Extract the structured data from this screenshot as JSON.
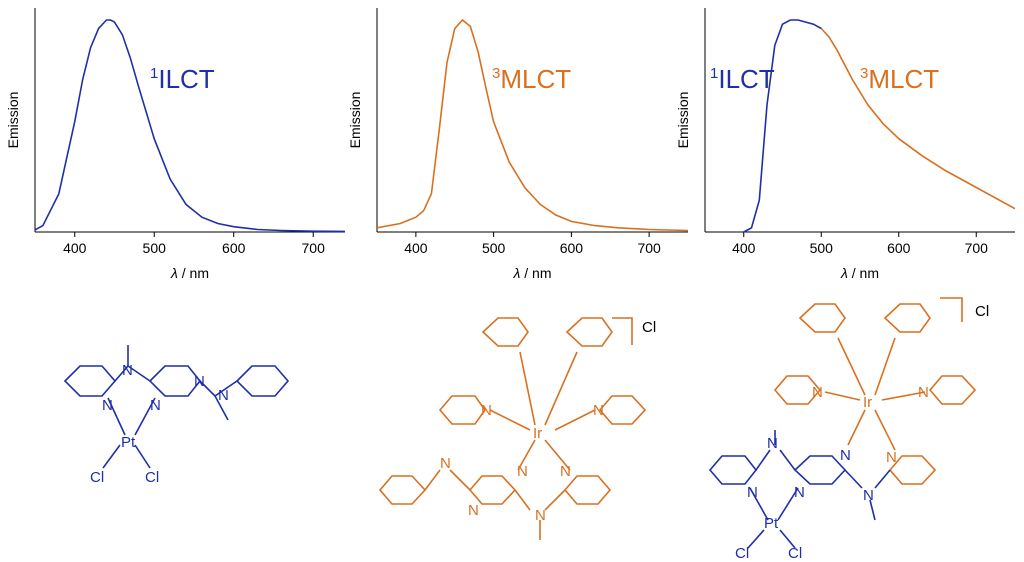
{
  "colors": {
    "blue": "#1f2fa8",
    "orange": "#d9701f",
    "axis": "#000000"
  },
  "chart_data": [
    {
      "type": "line",
      "xlabel_symbol": "λ",
      "xlabel_unit": "/ nm",
      "ylabel": "Emission",
      "xlim": [
        350,
        740
      ],
      "ylim": [
        0,
        1.0
      ],
      "x_ticks": [
        400,
        500,
        600,
        700
      ],
      "annotation": {
        "sup": "1",
        "text": "ILCT",
        "color": "#1f2fa8"
      },
      "series": [
        {
          "color": "#1f2fa8",
          "x": [
            350,
            360,
            380,
            400,
            410,
            420,
            430,
            440,
            445,
            450,
            460,
            470,
            480,
            500,
            520,
            540,
            560,
            580,
            600,
            630,
            660,
            700,
            740
          ],
          "y": [
            0.01,
            0.03,
            0.18,
            0.52,
            0.72,
            0.87,
            0.96,
            1.0,
            1.0,
            0.99,
            0.93,
            0.82,
            0.69,
            0.44,
            0.25,
            0.13,
            0.07,
            0.04,
            0.025,
            0.012,
            0.007,
            0.004,
            0.003
          ]
        }
      ]
    },
    {
      "type": "line",
      "xlabel_symbol": "λ",
      "xlabel_unit": "/ nm",
      "ylabel": "Emission",
      "xlim": [
        350,
        750
      ],
      "ylim": [
        0,
        1.0
      ],
      "x_ticks": [
        400,
        500,
        600,
        700
      ],
      "annotation": {
        "sup": "3",
        "text": "MLCT",
        "color": "#d9701f"
      },
      "series": [
        {
          "color": "#d9701f",
          "x": [
            350,
            380,
            400,
            410,
            420,
            430,
            440,
            450,
            460,
            470,
            480,
            490,
            500,
            520,
            540,
            560,
            580,
            600,
            630,
            660,
            700,
            750
          ],
          "y": [
            0.02,
            0.04,
            0.07,
            0.1,
            0.18,
            0.48,
            0.8,
            0.96,
            1.0,
            0.97,
            0.85,
            0.68,
            0.52,
            0.33,
            0.21,
            0.13,
            0.08,
            0.05,
            0.03,
            0.02,
            0.012,
            0.007
          ]
        }
      ]
    },
    {
      "type": "line",
      "xlabel_symbol": "λ",
      "xlabel_unit": "/ nm",
      "ylabel": "Emission",
      "xlim": [
        350,
        750
      ],
      "ylim": [
        0,
        1.0
      ],
      "x_ticks": [
        400,
        500,
        600,
        700
      ],
      "annotation_left": {
        "sup": "1",
        "text": "ILCT",
        "color": "#1f2fa8"
      },
      "annotation_right": {
        "sup": "3",
        "text": "MLCT",
        "color": "#d9701f"
      },
      "series": [
        {
          "color": "#1f2fa8",
          "x": [
            400,
            410,
            420,
            430,
            440,
            450,
            460,
            470,
            480,
            490,
            500
          ],
          "y": [
            0.0,
            0.02,
            0.15,
            0.6,
            0.88,
            0.98,
            1.0,
            1.0,
            0.99,
            0.98,
            0.96
          ]
        },
        {
          "color": "#d9701f",
          "x": [
            500,
            510,
            520,
            540,
            560,
            580,
            600,
            630,
            660,
            700,
            750
          ],
          "y": [
            0.96,
            0.92,
            0.86,
            0.72,
            0.6,
            0.51,
            0.44,
            0.36,
            0.29,
            0.21,
            0.11
          ]
        }
      ]
    }
  ],
  "structures": {
    "left": {
      "labels": [
        "N",
        "N",
        "N",
        "N",
        "N",
        "Pt",
        "Cl",
        "Cl"
      ]
    },
    "middle": {
      "counterion": "Cl",
      "labels": [
        "N",
        "Ir",
        "N",
        "N",
        "N",
        "N",
        "N",
        "N"
      ]
    },
    "right": {
      "counterion": "Cl",
      "labels": [
        "N",
        "Ir",
        "N",
        "N",
        "N",
        "N",
        "N",
        "N",
        "N",
        "Pt",
        "Cl",
        "Cl"
      ]
    }
  }
}
